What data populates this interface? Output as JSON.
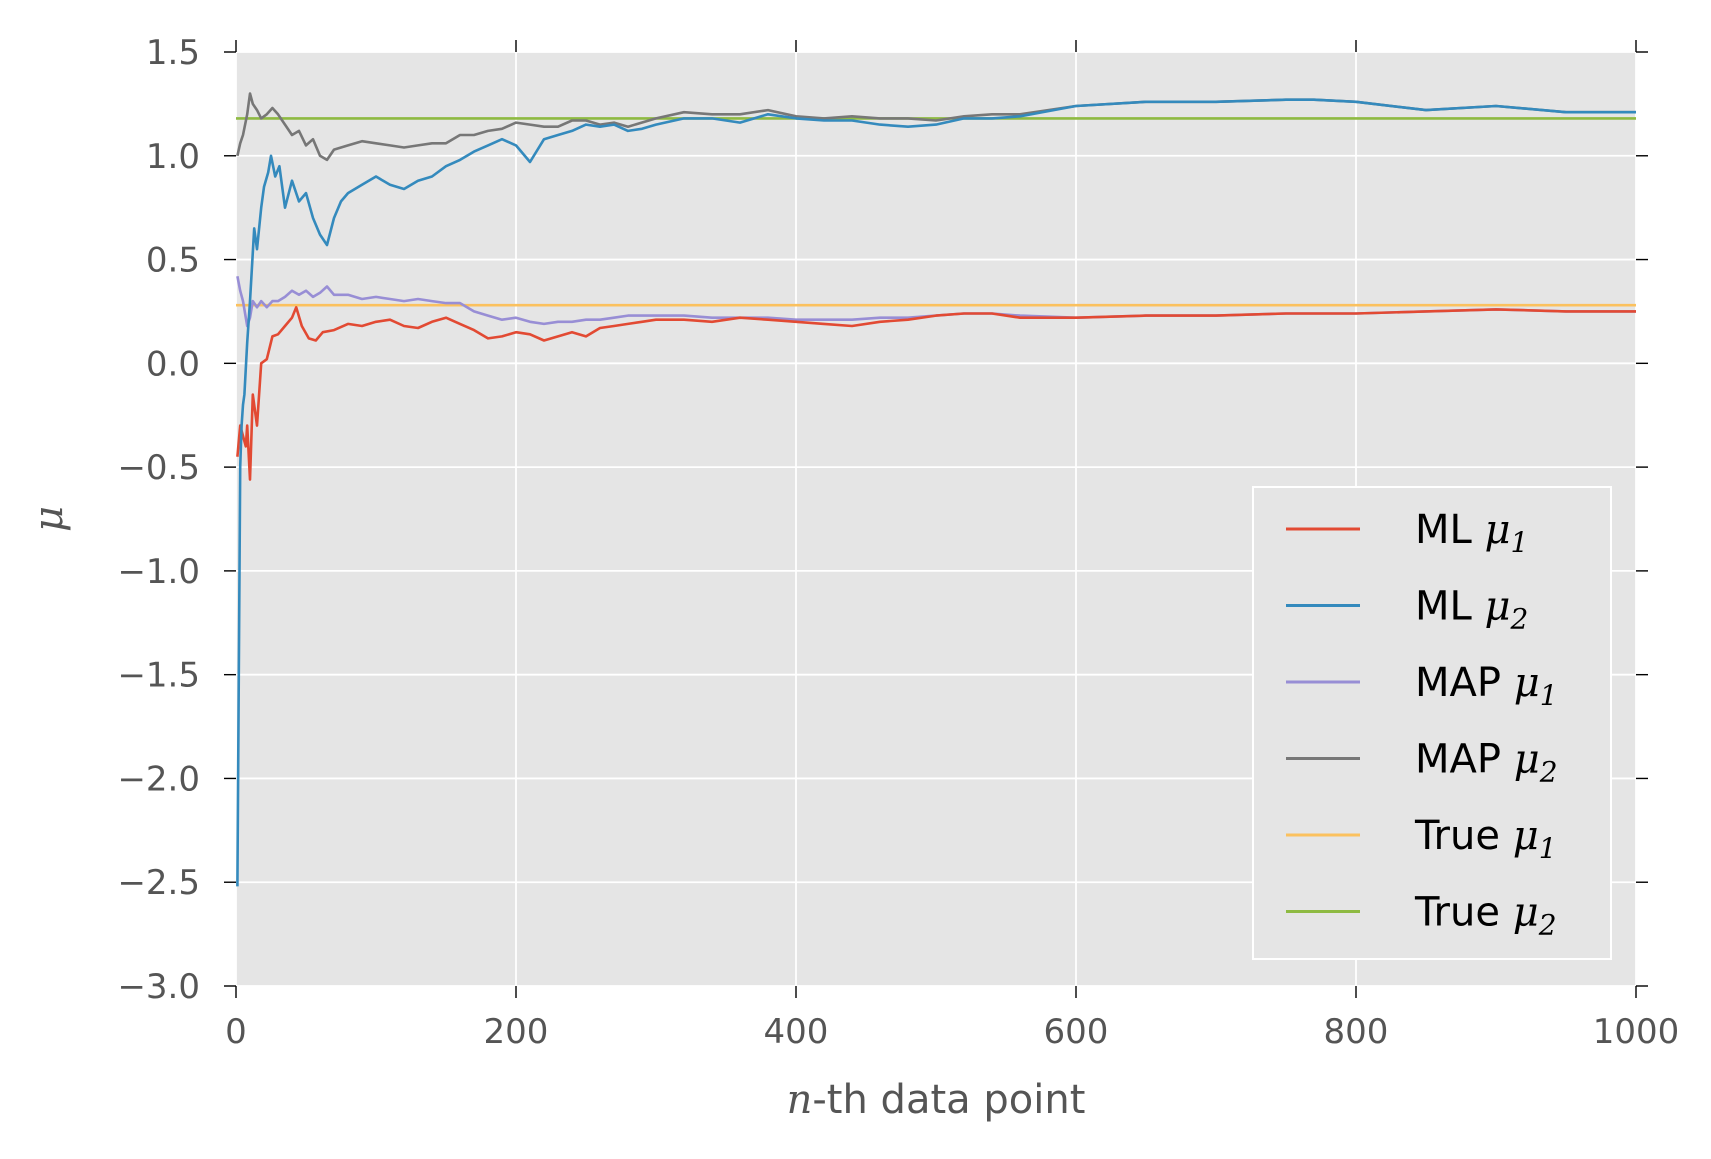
{
  "chart_data": {
    "type": "line",
    "xlabel": {
      "var": "n",
      "suffix": "-th data point"
    },
    "ylabel": "μ",
    "xlim": [
      0,
      1000
    ],
    "ylim": [
      -3.0,
      1.5
    ],
    "xticks": [
      0,
      200,
      400,
      600,
      800,
      1000
    ],
    "xtick_labels": [
      "0",
      "200",
      "400",
      "600",
      "800",
      "1000"
    ],
    "yticks": [
      1.5,
      1.0,
      0.5,
      0.0,
      -0.5,
      -1.0,
      -1.5,
      -2.0,
      -2.5,
      -3.0
    ],
    "ytick_labels": [
      "1.5",
      "1.0",
      "0.5",
      "0.0",
      "−0.5",
      "−1.0",
      "−1.5",
      "−2.0",
      "−2.5",
      "−3.0"
    ],
    "grid": true,
    "legend_position": "lower-right",
    "series": [
      {
        "name": "ML μ1",
        "label": "ML",
        "sym": "μ",
        "sub": "1",
        "color": "#E24A33",
        "x": [
          1,
          3,
          5,
          7,
          8,
          10,
          12,
          15,
          18,
          22,
          26,
          30,
          35,
          40,
          43,
          47,
          52,
          57,
          62,
          70,
          80,
          90,
          100,
          110,
          120,
          130,
          140,
          150,
          160,
          170,
          180,
          190,
          200,
          210,
          220,
          230,
          240,
          250,
          260,
          270,
          280,
          290,
          300,
          320,
          340,
          360,
          380,
          400,
          420,
          440,
          460,
          480,
          500,
          520,
          540,
          560,
          600,
          650,
          700,
          750,
          800,
          850,
          900,
          950,
          1000
        ],
        "y": [
          -0.45,
          -0.3,
          -0.35,
          -0.4,
          -0.3,
          -0.56,
          -0.15,
          -0.3,
          0.0,
          0.02,
          0.13,
          0.14,
          0.18,
          0.22,
          0.27,
          0.18,
          0.12,
          0.11,
          0.15,
          0.16,
          0.19,
          0.18,
          0.2,
          0.21,
          0.18,
          0.17,
          0.2,
          0.22,
          0.19,
          0.16,
          0.12,
          0.13,
          0.15,
          0.14,
          0.11,
          0.13,
          0.15,
          0.13,
          0.17,
          0.18,
          0.19,
          0.2,
          0.21,
          0.21,
          0.2,
          0.22,
          0.21,
          0.2,
          0.19,
          0.18,
          0.2,
          0.21,
          0.23,
          0.24,
          0.24,
          0.22,
          0.22,
          0.23,
          0.23,
          0.24,
          0.24,
          0.25,
          0.26,
          0.25,
          0.25
        ]
      },
      {
        "name": "ML μ2",
        "label": "ML",
        "sym": "μ",
        "sub": "2",
        "color": "#348ABD",
        "x": [
          1,
          2,
          3,
          4,
          5,
          6,
          8,
          10,
          13,
          15,
          18,
          20,
          23,
          25,
          28,
          31,
          35,
          40,
          45,
          50,
          55,
          60,
          65,
          70,
          75,
          80,
          90,
          100,
          110,
          120,
          130,
          140,
          150,
          160,
          170,
          180,
          190,
          200,
          210,
          220,
          230,
          240,
          250,
          260,
          270,
          280,
          290,
          300,
          320,
          340,
          360,
          380,
          400,
          420,
          440,
          460,
          480,
          500,
          520,
          540,
          560,
          600,
          650,
          700,
          750,
          770,
          800,
          850,
          900,
          950,
          1000
        ],
        "y": [
          -2.52,
          -1.5,
          -0.5,
          -0.3,
          -0.2,
          -0.15,
          0.1,
          0.3,
          0.65,
          0.55,
          0.75,
          0.85,
          0.92,
          1.0,
          0.9,
          0.95,
          0.75,
          0.88,
          0.78,
          0.82,
          0.7,
          0.62,
          0.57,
          0.7,
          0.78,
          0.82,
          0.86,
          0.9,
          0.86,
          0.84,
          0.88,
          0.9,
          0.95,
          0.98,
          1.02,
          1.05,
          1.08,
          1.05,
          0.97,
          1.08,
          1.1,
          1.12,
          1.15,
          1.14,
          1.15,
          1.12,
          1.13,
          1.15,
          1.18,
          1.18,
          1.16,
          1.2,
          1.18,
          1.17,
          1.17,
          1.15,
          1.14,
          1.15,
          1.18,
          1.18,
          1.19,
          1.24,
          1.26,
          1.26,
          1.27,
          1.27,
          1.26,
          1.22,
          1.24,
          1.21,
          1.21
        ]
      },
      {
        "name": "MAP μ1",
        "label": "MAP",
        "sym": "μ",
        "sub": "1",
        "color": "#988ED5",
        "x": [
          1,
          3,
          5,
          8,
          10,
          12,
          15,
          18,
          22,
          26,
          30,
          35,
          40,
          45,
          50,
          55,
          60,
          65,
          70,
          80,
          90,
          100,
          110,
          120,
          130,
          140,
          150,
          160,
          170,
          180,
          190,
          200,
          210,
          220,
          230,
          240,
          250,
          260,
          270,
          280,
          300,
          320,
          340,
          360,
          380,
          400,
          420,
          440,
          460,
          480,
          500,
          520,
          540,
          560,
          600,
          650,
          700,
          750,
          800,
          850,
          900,
          950,
          1000
        ],
        "y": [
          0.42,
          0.35,
          0.3,
          0.18,
          0.22,
          0.3,
          0.27,
          0.3,
          0.27,
          0.3,
          0.3,
          0.32,
          0.35,
          0.33,
          0.35,
          0.32,
          0.34,
          0.37,
          0.33,
          0.33,
          0.31,
          0.32,
          0.31,
          0.3,
          0.31,
          0.3,
          0.29,
          0.29,
          0.25,
          0.23,
          0.21,
          0.22,
          0.2,
          0.19,
          0.2,
          0.2,
          0.21,
          0.21,
          0.22,
          0.23,
          0.23,
          0.23,
          0.22,
          0.22,
          0.22,
          0.21,
          0.21,
          0.21,
          0.22,
          0.22,
          0.23,
          0.24,
          0.24,
          0.23,
          0.22,
          0.23,
          0.23,
          0.24,
          0.24,
          0.25,
          0.26,
          0.25,
          0.25
        ]
      },
      {
        "name": "MAP μ2",
        "label": "MAP",
        "sym": "μ",
        "sub": "2",
        "color": "#777777",
        "x": [
          1,
          3,
          5,
          8,
          10,
          12,
          15,
          18,
          22,
          26,
          30,
          35,
          40,
          45,
          50,
          55,
          60,
          65,
          70,
          80,
          90,
          100,
          110,
          120,
          130,
          140,
          150,
          160,
          170,
          180,
          190,
          200,
          210,
          220,
          230,
          240,
          250,
          260,
          270,
          280,
          300,
          320,
          340,
          360,
          380,
          400,
          420,
          440,
          460,
          480,
          500,
          520,
          540,
          560,
          600,
          650,
          700,
          750,
          770,
          800,
          850,
          900,
          950,
          1000
        ],
        "y": [
          1.0,
          1.06,
          1.1,
          1.2,
          1.3,
          1.25,
          1.22,
          1.18,
          1.2,
          1.23,
          1.2,
          1.15,
          1.1,
          1.12,
          1.05,
          1.08,
          1.0,
          0.98,
          1.03,
          1.05,
          1.07,
          1.06,
          1.05,
          1.04,
          1.05,
          1.06,
          1.06,
          1.1,
          1.1,
          1.12,
          1.13,
          1.16,
          1.15,
          1.14,
          1.14,
          1.17,
          1.17,
          1.15,
          1.16,
          1.14,
          1.18,
          1.21,
          1.2,
          1.2,
          1.22,
          1.19,
          1.18,
          1.19,
          1.18,
          1.18,
          1.17,
          1.19,
          1.2,
          1.2,
          1.24,
          1.26,
          1.26,
          1.27,
          1.27,
          1.26,
          1.22,
          1.24,
          1.21,
          1.21
        ]
      },
      {
        "name": "True μ1",
        "label": "True",
        "sym": "μ",
        "sub": "1",
        "color": "#FBC15E",
        "x": [
          0,
          1000
        ],
        "y": [
          0.28,
          0.28
        ]
      },
      {
        "name": "True μ2",
        "label": "True",
        "sym": "μ",
        "sub": "2",
        "color": "#8EBA42",
        "x": [
          0,
          1000
        ],
        "y": [
          1.18,
          1.18
        ]
      }
    ]
  }
}
